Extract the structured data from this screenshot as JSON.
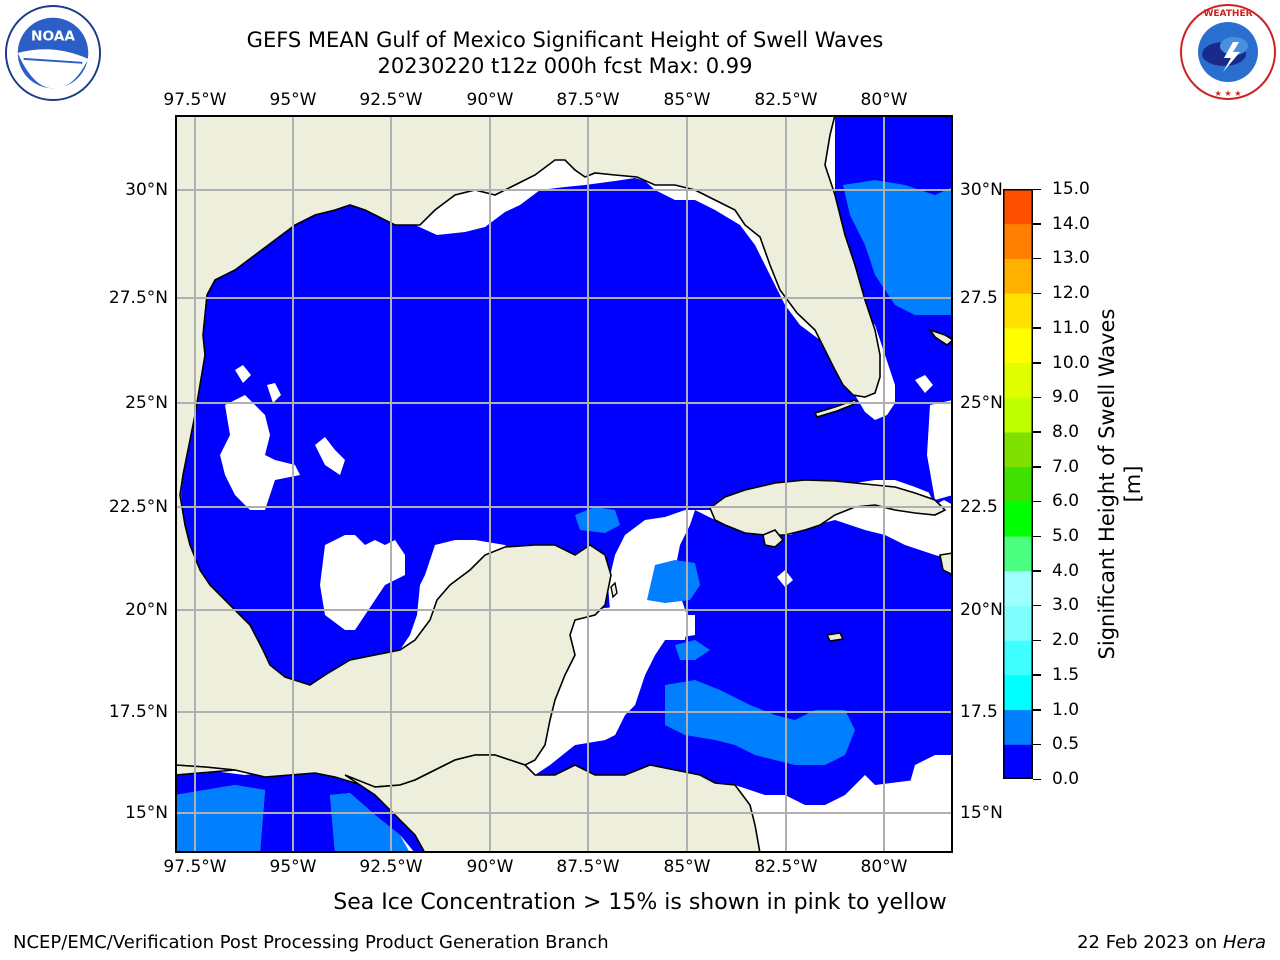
{
  "title": {
    "line1": "GEFS MEAN Gulf of Mexico Significant Height of Swell Waves",
    "line2": "20230220 t12z 000h fcst   Max: 0.99"
  },
  "lon_labels": [
    "97.5°W",
    "95°W",
    "92.5°W",
    "90°W",
    "87.5°W",
    "85°W",
    "82.5°W",
    "80°W"
  ],
  "lat_labels_left": [
    "30°N",
    "27.5°N",
    "25°N",
    "22.5°N",
    "20°N",
    "17.5°N",
    "15°N"
  ],
  "lat_labels_right": [
    "30°N",
    "27.5",
    "25°N",
    "22.5",
    "20°N",
    "17.5",
    "15°N"
  ],
  "colorbar": {
    "label": "Significant Height of Swell Waves [m]",
    "ticks": [
      "15.0",
      "14.0",
      "13.0",
      "12.0",
      "11.0",
      "10.0",
      "9.0",
      "8.0",
      "7.0",
      "6.0",
      "5.0",
      "4.0",
      "3.0",
      "2.0",
      "1.5",
      "1.0",
      "0.5",
      "0.0"
    ],
    "colors": [
      "#0000ff",
      "#0080ff",
      "#00ffff",
      "#40ffff",
      "#80ffff",
      "#a0ffff",
      "#4dff80",
      "#00ff00",
      "#40e000",
      "#80e000",
      "#c0ff00",
      "#e0ff00",
      "#ffff00",
      "#ffe000",
      "#ffb000",
      "#ff8000",
      "#ff5000",
      "#ff2000",
      "#ff0000"
    ]
  },
  "map": {
    "land_color": "#eeeedd",
    "water_low_color": "#0000ff",
    "water_mid_color": "#0080ff"
  },
  "sea_ice_note": "Sea Ice Concentration > 15% is shown in pink to yellow",
  "footer": {
    "left": "NCEP/EMC/Verification Post Processing Product Generation Branch",
    "date": "22 Feb 2023 on ",
    "machine": "Hera"
  },
  "logos": {
    "noaa_text": "NOAA",
    "nws_text": "NATIONAL WEATHER SERVICE"
  }
}
